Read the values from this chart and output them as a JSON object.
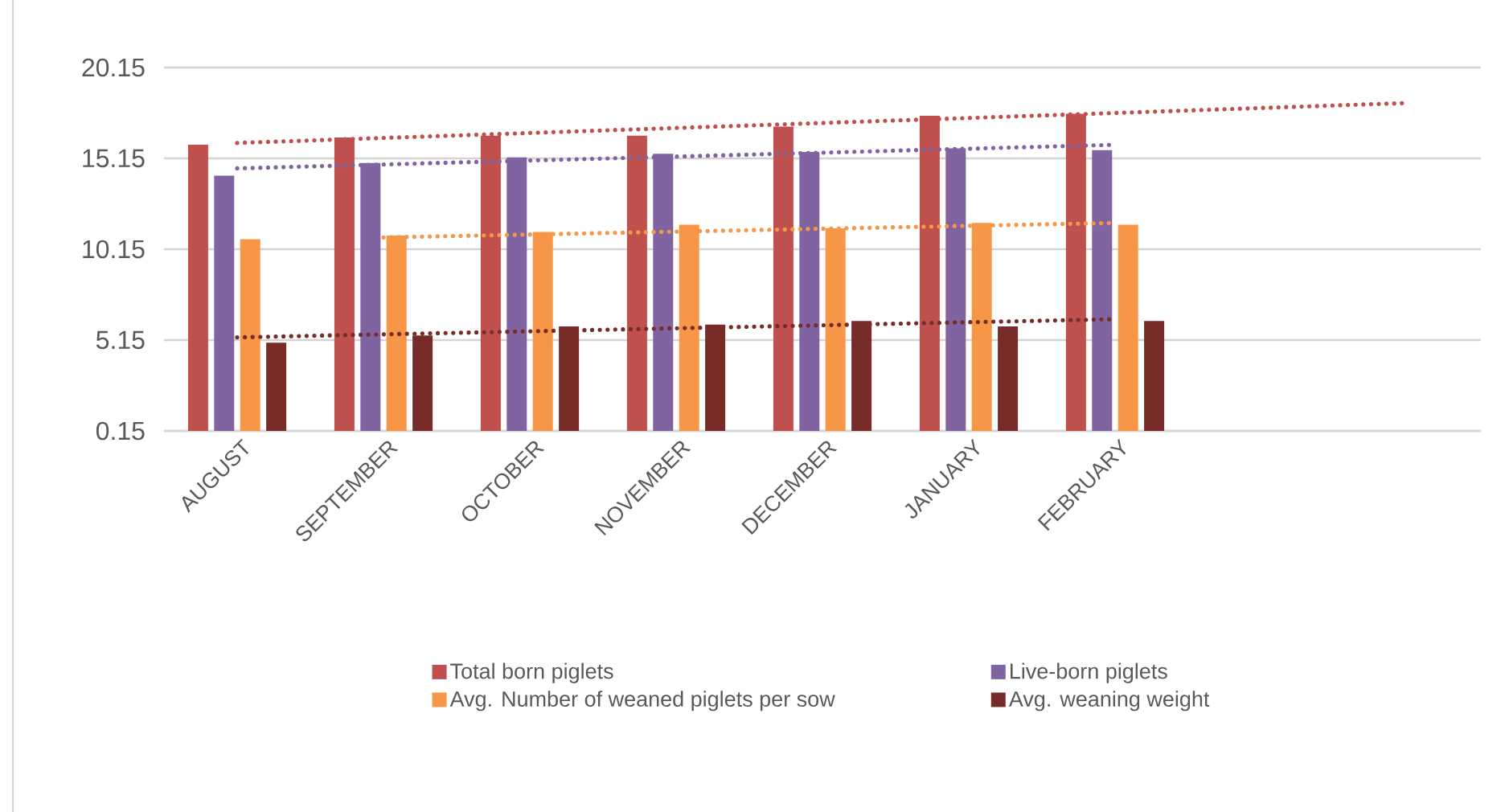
{
  "chart_data": {
    "type": "bar",
    "categories": [
      "AUGUST",
      "SEPTEMBER",
      "OCTOBER",
      "NOVEMBER",
      "DECEMBER",
      "JANUARY",
      "FEBRUARY",
      null,
      null
    ],
    "series": [
      {
        "name": "Total born piglets",
        "color": "#c0504d",
        "values": [
          15.9,
          16.3,
          16.4,
          16.4,
          16.9,
          17.5,
          17.6,
          null,
          null
        ]
      },
      {
        "name": "Live-born piglets",
        "color": "#8064a2",
        "values": [
          14.2,
          14.9,
          15.2,
          15.4,
          15.5,
          15.7,
          15.6,
          null,
          null
        ]
      },
      {
        "name": "Avg. Number of weaned piglets per sow",
        "color": "#f79646",
        "values": [
          10.7,
          10.9,
          11.1,
          11.5,
          11.3,
          11.6,
          11.5,
          null,
          null
        ]
      },
      {
        "name": "Avg. weaning weight",
        "color": "#772c2a",
        "values": [
          5.0,
          5.4,
          5.9,
          6.0,
          6.2,
          5.9,
          6.2,
          null,
          null
        ]
      },
      {
        "type": "line",
        "color": "#c0504d",
        "line_style": "dotted",
        "values": [
          16.0,
          null,
          null,
          null,
          null,
          null,
          null,
          null,
          18.2
        ]
      },
      {
        "type": "line",
        "color": "#8064a2",
        "line_style": "dotted",
        "values": [
          14.6,
          null,
          null,
          null,
          null,
          null,
          15.9,
          null,
          null
        ]
      },
      {
        "type": "line",
        "color": "#f79646",
        "line_style": "dotted",
        "values": [
          null,
          10.8,
          null,
          null,
          null,
          null,
          11.6,
          null,
          null
        ]
      },
      {
        "type": "line",
        "color": "#772c2a",
        "line_style": "dotted",
        "values": [
          5.3,
          null,
          null,
          null,
          null,
          null,
          6.3,
          null,
          null
        ]
      }
    ],
    "ylim": [
      0.15,
      20.15
    ],
    "yticks": [
      0.15,
      5.15,
      10.15,
      15.15,
      20.15
    ],
    "grid": "y",
    "legend": "bottom"
  }
}
